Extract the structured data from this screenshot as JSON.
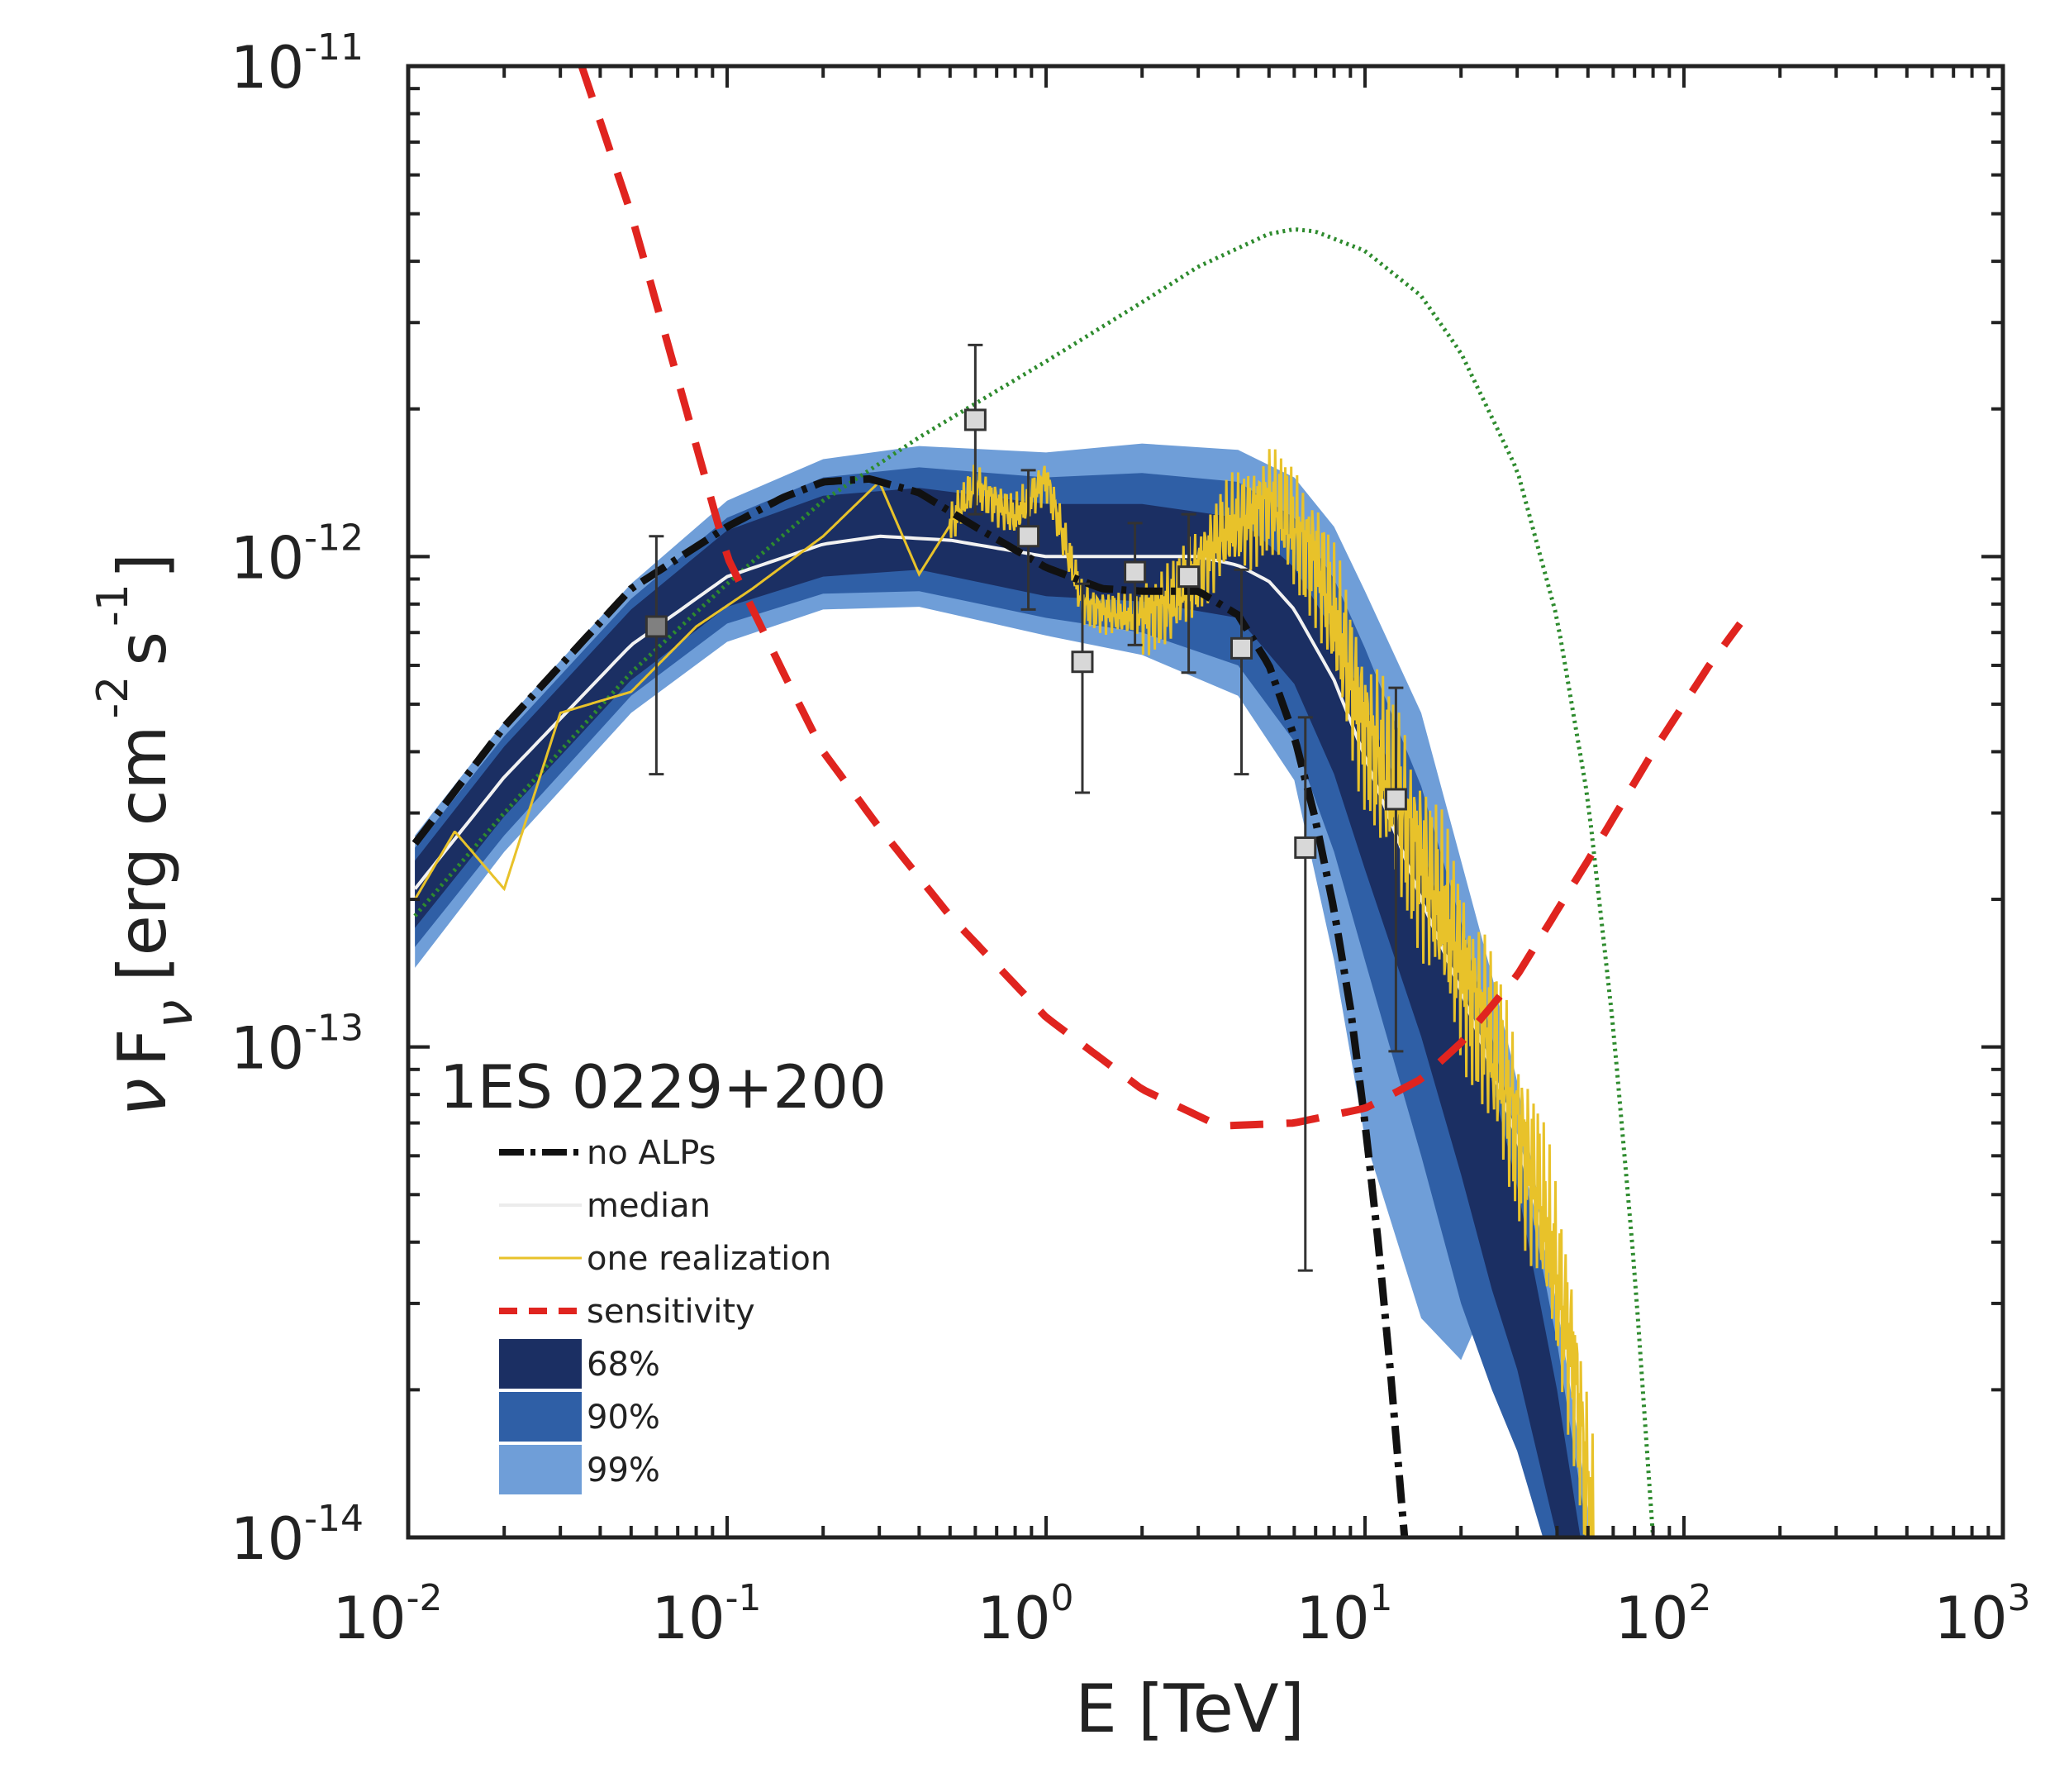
{
  "chart_data": {
    "type": "line",
    "title": "1ES 0229+200",
    "xlabel": "E [TeV]",
    "ylabel": "ν Fν [erg cm⁻² s⁻¹]",
    "ylabel_parts": {
      "nu": "ν",
      "f": "F",
      "sub": "ν",
      "unit1": "[erg cm",
      "exp1": "-2",
      "unit2": "s",
      "exp2": "-1",
      "close": "]"
    },
    "xscale": "log",
    "yscale": "log",
    "xlim": [
      0.01,
      1000
    ],
    "ylim": [
      1e-14,
      1e-11
    ],
    "xticks": [
      {
        "value": 0.01,
        "base": "10",
        "exp": "-2"
      },
      {
        "value": 0.1,
        "base": "10",
        "exp": "-1"
      },
      {
        "value": 1,
        "base": "10",
        "exp": "0"
      },
      {
        "value": 10,
        "base": "10",
        "exp": "1"
      },
      {
        "value": 100,
        "base": "10",
        "exp": "2"
      },
      {
        "value": 1000,
        "base": "10",
        "exp": "3"
      }
    ],
    "yticks": [
      {
        "value": 1e-14,
        "base": "10",
        "exp": "-14"
      },
      {
        "value": 1e-13,
        "base": "10",
        "exp": "-13"
      },
      {
        "value": 1e-12,
        "base": "10",
        "exp": "-12"
      },
      {
        "value": 1e-11,
        "base": "10",
        "exp": "-11"
      }
    ],
    "legend": [
      {
        "label": "no ALPs",
        "style": "dashdot-black"
      },
      {
        "label": "median",
        "style": "solid-white"
      },
      {
        "label": "one realization",
        "style": "solid-yellow"
      },
      {
        "label": "sensitivity",
        "style": "dashed-red"
      },
      {
        "label": "68%",
        "style": "band-68"
      },
      {
        "label": "90%",
        "style": "band-90"
      },
      {
        "label": "99%",
        "style": "band-99"
      }
    ],
    "colors": {
      "band68": "#1b2f63",
      "band90": "#2f5fa6",
      "band99": "#6f9ed8",
      "band_low": "#7f93d6",
      "median": "#f2f2f2",
      "realization": "#e8c22a",
      "no_alps": "#111111",
      "sensitivity": "#e0241f",
      "intrinsic": "#2e8b2e",
      "points_fill": "#d8d8d8"
    },
    "bands": {
      "x": [
        0.0105,
        0.02,
        0.05,
        0.1,
        0.2,
        0.4,
        1,
        2,
        4,
        6,
        8,
        10,
        15,
        20,
        25,
        30,
        40,
        50
      ],
      "band99_upper": [
        2.7e-13,
        4.6e-13,
        8.8e-13,
        1.3e-12,
        1.58e-12,
        1.68e-12,
        1.63e-12,
        1.7e-12,
        1.65e-12,
        1.45e-12,
        1.15e-12,
        8.5e-13,
        4.8e-13,
        2.4e-13,
        1.4e-13,
        8.5e-14,
        3e-14,
        1.2e-14
      ],
      "band90_upper": [
        2.55e-13,
        4.3e-13,
        8.2e-13,
        1.2e-12,
        1.45e-12,
        1.52e-12,
        1.45e-12,
        1.48e-12,
        1.42e-12,
        1.2e-12,
        9e-13,
        6.5e-13,
        3.4e-13,
        1.8e-13,
        1.05e-13,
        6.5e-14,
        2.5e-14,
        1e-14
      ],
      "band68_upper": [
        2.4e-13,
        4.1e-13,
        7.8e-13,
        1.13e-12,
        1.33e-12,
        1.38e-12,
        1.28e-12,
        1.28e-12,
        1.2e-12,
        9.5e-13,
        7e-13,
        5e-13,
        2.6e-13,
        1.4e-13,
        8.5e-14,
        5.2e-14,
        2e-14,
        8e-15
      ],
      "band68_lower": [
        1.75e-13,
        2.95e-13,
        5.6e-13,
        7.9e-13,
        9.1e-13,
        9.4e-13,
        8.3e-13,
        8.1e-13,
        7.5e-13,
        5.5e-13,
        3.6e-13,
        2.3e-13,
        1.05e-13,
        5.5e-14,
        3.2e-14,
        2.2e-14,
        1e-14,
        5e-15
      ],
      "band90_lower": [
        1.6e-13,
        2.7e-13,
        5.2e-13,
        7.3e-13,
        8.4e-13,
        8.5e-13,
        7.5e-13,
        7e-13,
        6e-13,
        4.2e-13,
        2.5e-13,
        1.5e-13,
        6e-14,
        3e-14,
        2e-14,
        1.5e-14,
        8e-15,
        4e-15
      ],
      "band99_lower": [
        1.45e-13,
        2.5e-13,
        4.8e-13,
        6.7e-13,
        7.8e-13,
        7.9e-13,
        6.9e-13,
        6.3e-13,
        5.2e-13,
        3.5e-13,
        1.5e-13,
        6.5e-14,
        2.8e-14,
        2.3e-14,
        3.2e-14,
        2.5e-14,
        1.2e-14,
        6e-15
      ]
    },
    "series": [
      {
        "name": "no ALPs",
        "x": [
          0.0105,
          0.02,
          0.05,
          0.1,
          0.15,
          0.2,
          0.28,
          0.4,
          0.6,
          1,
          1.5,
          2,
          3,
          4,
          5,
          6,
          7,
          8,
          9,
          10,
          11,
          12,
          13.3
        ],
        "y": [
          2.6e-13,
          4.5e-13,
          8.6e-13,
          1.15e-12,
          1.32e-12,
          1.42e-12,
          1.44e-12,
          1.35e-12,
          1.15e-12,
          9.5e-13,
          8.6e-13,
          8.5e-13,
          8.5e-13,
          7.6e-13,
          6e-13,
          4.3e-13,
          2.9e-13,
          1.9e-13,
          1.2e-13,
          7e-14,
          4e-14,
          2.2e-14,
          1e-14
        ]
      },
      {
        "name": "median",
        "x": [
          0.0105,
          0.02,
          0.05,
          0.1,
          0.2,
          0.3,
          0.5,
          1,
          2,
          3,
          4,
          5,
          6,
          8,
          10,
          12,
          15,
          20,
          25,
          30,
          35,
          40,
          45,
          52
        ],
        "y": [
          2.1e-13,
          3.55e-13,
          6.6e-13,
          9.1e-13,
          1.06e-12,
          1.1e-12,
          1.08e-12,
          1e-12,
          1e-12,
          1e-12,
          9.6e-13,
          8.9e-13,
          7.8e-13,
          5.6e-13,
          3.9e-13,
          2.9e-13,
          2e-13,
          1.3e-13,
          9e-14,
          6.5e-14,
          4.5e-14,
          3.1e-14,
          2e-14,
          1e-14
        ]
      },
      {
        "name": "sensitivity",
        "x": [
          0.035,
          0.05,
          0.07,
          0.1,
          0.15,
          0.2,
          0.3,
          0.5,
          1,
          2,
          3.5,
          6,
          10,
          15,
          20,
          30,
          50,
          80,
          120,
          150
        ],
        "y": [
          1e-11,
          5e-12,
          2.3e-12,
          1e-12,
          5.8e-13,
          4e-13,
          2.8e-13,
          1.85e-13,
          1.15e-13,
          8.2e-14,
          6.9e-14,
          7e-14,
          7.5e-14,
          8.6e-14,
          1.02e-13,
          1.4e-13,
          2.4e-13,
          4e-13,
          6e-13,
          7.3e-13
        ]
      },
      {
        "name": "intrinsic",
        "x": [
          0.0105,
          0.02,
          0.05,
          0.1,
          0.2,
          0.4,
          0.6,
          1,
          2,
          3,
          5,
          6,
          7,
          10,
          15,
          20,
          30,
          40,
          50,
          60,
          70,
          80
        ],
        "y": [
          1.85e-13,
          3e-13,
          5.8e-13,
          8.8e-13,
          1.3e-12,
          1.75e-12,
          2.05e-12,
          2.5e-12,
          3.3e-12,
          3.9e-12,
          4.55e-12,
          4.65e-12,
          4.6e-12,
          4.2e-12,
          3.4e-12,
          2.6e-12,
          1.5e-12,
          7.5e-13,
          3.2e-13,
          1.1e-13,
          3.5e-14,
          1e-14
        ]
      }
    ],
    "realization_anchor": {
      "x": [
        0.0105,
        0.014,
        0.02,
        0.03,
        0.05,
        0.08,
        0.12,
        0.2,
        0.3,
        0.4,
        0.6,
        0.8,
        1,
        1.3,
        1.8,
        2.5,
        3.5,
        5,
        7,
        10,
        14,
        20,
        28,
        35,
        45,
        52
      ],
      "y": [
        2e-13,
        2.75e-13,
        2.1e-13,
        4.8e-13,
        5.3e-13,
        7.2e-13,
        8.6e-13,
        1.1e-12,
        1.42e-12,
        9.2e-13,
        1.4e-12,
        1.2e-12,
        1.45e-12,
        8e-13,
        7.5e-13,
        8e-13,
        1.1e-12,
        1.3e-12,
        1e-12,
        4.5e-13,
        2.7e-13,
        1.5e-13,
        8e-14,
        5e-14,
        2.3e-14,
        1e-14
      ]
    },
    "data_points": [
      {
        "x": 0.06,
        "y": 7.2e-13,
        "y_err_low": 3.6e-13,
        "y_err_high": 1.1e-12
      },
      {
        "x": 0.6,
        "y": 1.9e-12,
        "y_err_low": 1.22e-12,
        "y_err_high": 2.7e-12
      },
      {
        "x": 0.88,
        "y": 1.1e-12,
        "y_err_low": 7.8e-13,
        "y_err_high": 1.5e-12
      },
      {
        "x": 1.3,
        "y": 6.1e-13,
        "y_err_low": 3.3e-13,
        "y_err_high": 8.8e-13
      },
      {
        "x": 1.9,
        "y": 9.3e-13,
        "y_err_low": 6.6e-13,
        "y_err_high": 1.17e-12
      },
      {
        "x": 2.8,
        "y": 9.1e-13,
        "y_err_low": 5.8e-13,
        "y_err_high": 1.22e-12
      },
      {
        "x": 4.1,
        "y": 6.5e-13,
        "y_err_low": 3.6e-13,
        "y_err_high": 9.4e-13
      },
      {
        "x": 6.5,
        "y": 2.55e-13,
        "y_err_low": 3.5e-14,
        "y_err_high": 4.7e-13
      },
      {
        "x": 12.5,
        "y": 3.2e-13,
        "y_err_low": 9.8e-14,
        "y_err_high": 5.4e-13
      }
    ]
  }
}
